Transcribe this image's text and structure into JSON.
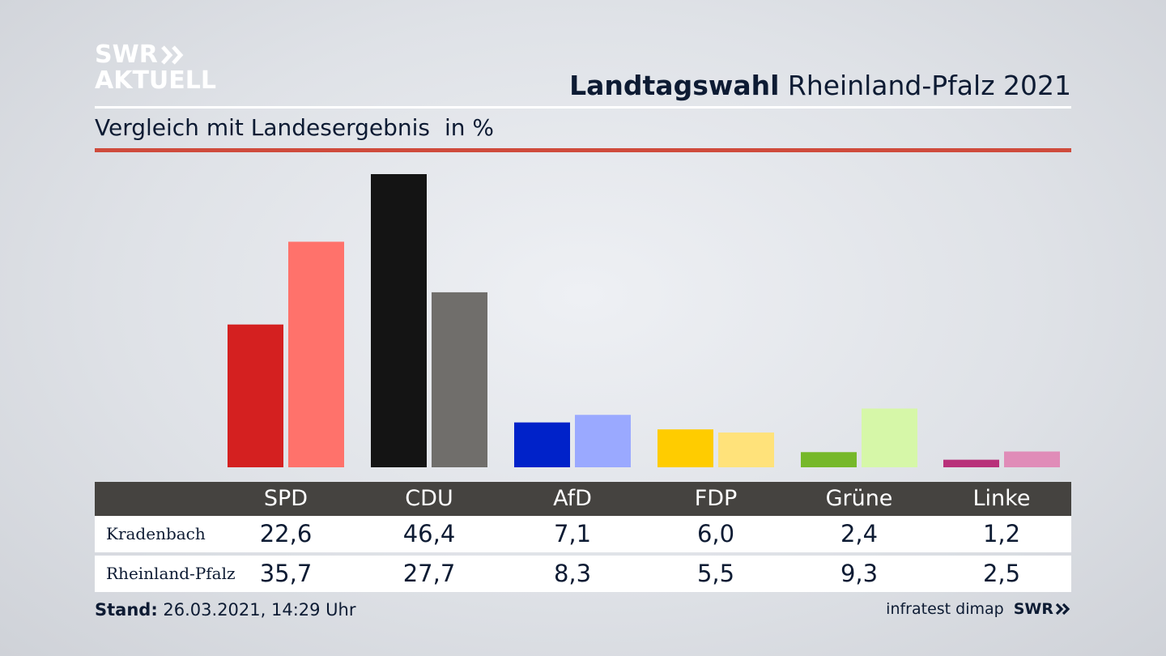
{
  "header": {
    "logo_line1": "SWR",
    "logo_line2": "AKTUELL",
    "title_bold": "Landtagswahl",
    "title_rest": " Rheinland-Pfalz 2021",
    "subtitle": "Vergleich mit Landesergebnis",
    "unit": "in %"
  },
  "colors": {
    "accent_rule": "#cf4b3c",
    "table_header": "#454340"
  },
  "chart_data": {
    "type": "bar",
    "categories": [
      "SPD",
      "CDU",
      "AfD",
      "FDP",
      "Grüne",
      "Linke"
    ],
    "series": [
      {
        "name": "Kradenbach",
        "values": [
          22.6,
          46.4,
          7.1,
          6.0,
          2.4,
          1.2
        ],
        "display": [
          "22,6",
          "46,4",
          "7,1",
          "6,0",
          "2,4",
          "1,2"
        ],
        "colors": [
          "#d42020",
          "#141414",
          "#0022c9",
          "#ffcc00",
          "#76b82a",
          "#b8317a"
        ]
      },
      {
        "name": "Rheinland-Pfalz",
        "values": [
          35.7,
          27.7,
          8.3,
          5.5,
          9.3,
          2.5
        ],
        "display": [
          "35,7",
          "27,7",
          "8,3",
          "5,5",
          "9,3",
          "2,5"
        ],
        "colors": [
          "#ff726b",
          "#706e6b",
          "#9aa9ff",
          "#ffe27a",
          "#d6f7a8",
          "#e08cb8"
        ]
      }
    ],
    "ylim": [
      0,
      46.4
    ]
  },
  "footer": {
    "stand_label": "Stand:",
    "stand_value": " 26.03.2021, 14:29 Uhr",
    "source": "infratest dimap",
    "brand": "SWR"
  }
}
